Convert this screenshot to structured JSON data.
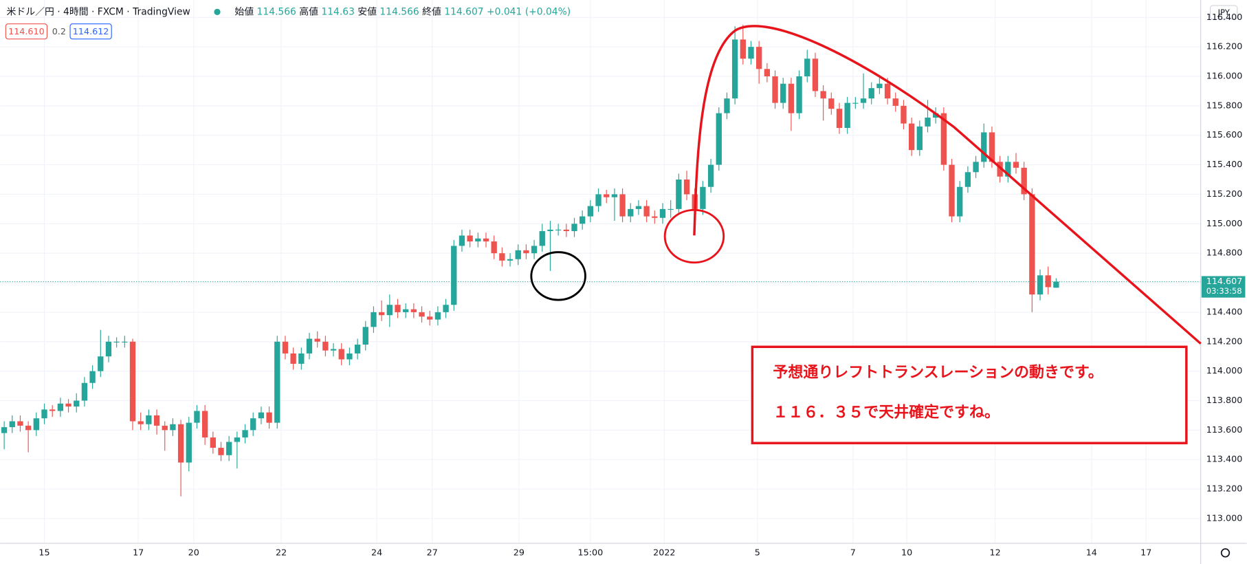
{
  "header": {
    "symbol": "米ドル／円 · 4時間 · FXCM · TradingView",
    "ohlc": [
      {
        "label": "始値",
        "value": 114.566
      },
      {
        "label": "高値",
        "value": 114.63
      },
      {
        "label": "安値",
        "value": 114.566
      },
      {
        "label": "終値",
        "value": 114.607
      }
    ],
    "change": "+0.041",
    "change_pct": "(+0.04%)",
    "sell": "114.610",
    "spread": "0.2",
    "buy": "114.612",
    "currency": "JPY"
  },
  "annotation": {
    "line1": "予想通りレフトトランスレーションの動きです。",
    "line2": "１１６．３５で天井確定ですね。"
  },
  "chart_data": {
    "type": "candlestick",
    "up_color": "#26a69a",
    "down_color": "#ef5350",
    "grid": true,
    "last_price": {
      "value": 114.607,
      "label": "114.607"
    },
    "countdown": "03:33:58",
    "xlim": [
      -0.5,
      149
    ],
    "ylim": [
      112.832,
      116.518
    ],
    "xticks": [
      {
        "value": 5,
        "label": "15"
      },
      {
        "value": 16.7,
        "label": "17"
      },
      {
        "value": 23.6,
        "label": "20"
      },
      {
        "value": 34.5,
        "label": "22"
      },
      {
        "value": 46.4,
        "label": "24"
      },
      {
        "value": 53.3,
        "label": "27"
      },
      {
        "value": 64.1,
        "label": "29"
      },
      {
        "value": 73,
        "label": "15:00"
      },
      {
        "value": 82.2,
        "label": "2022"
      },
      {
        "value": 93.8,
        "label": "5"
      },
      {
        "value": 105.7,
        "label": "7"
      },
      {
        "value": 112.4,
        "label": "10"
      },
      {
        "value": 123.4,
        "label": "12"
      },
      {
        "value": 135.4,
        "label": "14"
      },
      {
        "value": 142.2,
        "label": "17"
      }
    ],
    "yticks": [
      {
        "value": 113,
        "label": "113.000"
      },
      {
        "value": 113.2,
        "label": "113.200"
      },
      {
        "value": 113.4,
        "label": "113.400"
      },
      {
        "value": 113.6,
        "label": "113.600"
      },
      {
        "value": 113.8,
        "label": "113.800"
      },
      {
        "value": 114,
        "label": "114.000"
      },
      {
        "value": 114.2,
        "label": "114.200"
      },
      {
        "value": 114.4,
        "label": "114.400"
      },
      {
        "value": 114.6,
        "label": "114.600"
      },
      {
        "value": 114.8,
        "label": "114.800"
      },
      {
        "value": 115,
        "label": "115.000"
      },
      {
        "value": 115.2,
        "label": "115.200"
      },
      {
        "value": 115.4,
        "label": "115.400"
      },
      {
        "value": 115.6,
        "label": "115.600"
      },
      {
        "value": 115.8,
        "label": "115.800"
      },
      {
        "value": 116,
        "label": "116.000"
      },
      {
        "value": 116.2,
        "label": "116.200"
      },
      {
        "value": 116.4,
        "label": "116.400"
      }
    ],
    "open": [
      113.58,
      113.62,
      113.66,
      113.63,
      113.6,
      113.68,
      113.74,
      113.73,
      113.78,
      113.76,
      113.8,
      113.92,
      114.0,
      114.1,
      114.2,
      114.2,
      114.2,
      113.66,
      113.64,
      113.7,
      113.63,
      113.6,
      113.64,
      113.38,
      113.65,
      113.73,
      113.55,
      113.48,
      113.43,
      113.52,
      113.55,
      113.6,
      113.68,
      113.72,
      113.65,
      114.2,
      114.12,
      114.05,
      114.12,
      114.22,
      114.2,
      114.14,
      114.15,
      114.08,
      114.12,
      114.18,
      114.3,
      114.4,
      114.38,
      114.45,
      114.4,
      114.42,
      114.4,
      114.37,
      114.35,
      114.4,
      114.45,
      114.85,
      114.92,
      114.88,
      114.9,
      114.88,
      114.8,
      114.75,
      114.76,
      114.82,
      114.8,
      114.85,
      114.95,
      114.96,
      114.96,
      114.95,
      115.0,
      115.05,
      115.12,
      115.2,
      115.18,
      115.2,
      115.05,
      115.1,
      115.12,
      115.05,
      115.04,
      115.1,
      115.1,
      115.3,
      115.2,
      115.1,
      115.25,
      115.4,
      115.75,
      115.85,
      116.25,
      116.12,
      116.2,
      116.05,
      116.0,
      115.82,
      115.95,
      115.75,
      116.0,
      116.12,
      115.9,
      115.85,
      115.78,
      115.65,
      115.82,
      115.82,
      115.85,
      115.92,
      115.95,
      115.85,
      115.8,
      115.68,
      115.5,
      115.66,
      115.72,
      115.75,
      115.4,
      115.05,
      115.25,
      115.35,
      115.42,
      115.62,
      115.42,
      115.32,
      115.42,
      115.38,
      115.2,
      114.52,
      114.65,
      114.566
    ],
    "high": [
      113.66,
      113.7,
      113.7,
      113.66,
      113.72,
      113.78,
      113.77,
      113.82,
      113.81,
      113.85,
      113.96,
      114.04,
      114.28,
      114.24,
      114.23,
      114.24,
      114.22,
      113.72,
      113.74,
      113.74,
      113.66,
      113.68,
      113.67,
      113.69,
      113.77,
      113.77,
      113.59,
      113.52,
      113.56,
      113.59,
      113.64,
      113.72,
      113.76,
      113.76,
      114.24,
      114.24,
      114.16,
      114.16,
      114.26,
      114.27,
      114.24,
      114.19,
      114.19,
      114.16,
      114.22,
      114.34,
      114.44,
      114.48,
      114.52,
      114.49,
      114.46,
      114.46,
      114.44,
      114.41,
      114.44,
      114.49,
      114.89,
      114.96,
      114.96,
      114.94,
      114.94,
      114.92,
      114.84,
      114.8,
      114.86,
      114.86,
      114.89,
      115.0,
      115.02,
      115.0,
      115.0,
      115.04,
      115.09,
      115.16,
      115.24,
      115.23,
      115.24,
      115.24,
      115.14,
      115.16,
      115.16,
      115.09,
      115.14,
      115.16,
      115.34,
      115.36,
      115.24,
      115.29,
      115.44,
      115.79,
      115.89,
      116.34,
      116.35,
      116.24,
      116.24,
      116.09,
      116.04,
      115.99,
      115.99,
      116.04,
      116.18,
      116.16,
      115.94,
      115.89,
      115.82,
      115.86,
      115.86,
      116.02,
      115.96,
      115.99,
      115.99,
      115.89,
      115.84,
      115.72,
      115.7,
      115.84,
      115.79,
      115.79,
      115.44,
      115.29,
      115.39,
      115.46,
      115.68,
      115.66,
      115.46,
      115.46,
      115.48,
      115.42,
      115.24,
      114.69,
      114.71,
      114.63
    ],
    "low": [
      113.47,
      113.58,
      113.59,
      113.45,
      113.56,
      113.64,
      113.69,
      113.69,
      113.72,
      113.72,
      113.76,
      113.88,
      113.96,
      114.06,
      114.16,
      114.16,
      113.6,
      113.6,
      113.6,
      113.57,
      113.46,
      113.56,
      113.15,
      113.32,
      113.61,
      113.5,
      113.44,
      113.39,
      113.39,
      113.34,
      113.51,
      113.56,
      113.64,
      113.61,
      113.61,
      114.08,
      114.01,
      114.01,
      114.08,
      114.16,
      114.1,
      114.1,
      114.04,
      114.04,
      114.08,
      114.14,
      114.26,
      114.34,
      114.3,
      114.36,
      114.36,
      114.36,
      114.33,
      114.31,
      114.31,
      114.36,
      114.41,
      114.81,
      114.84,
      114.84,
      114.84,
      114.76,
      114.71,
      114.71,
      114.72,
      114.76,
      114.76,
      114.81,
      114.68,
      114.92,
      114.91,
      114.91,
      114.96,
      115.01,
      115.08,
      115.14,
      115.02,
      115.01,
      115.01,
      115.06,
      115.01,
      115.0,
      115.0,
      115.04,
      115.06,
      115.16,
      115.06,
      115.06,
      115.21,
      115.36,
      115.71,
      115.81,
      116.08,
      116.08,
      115.95,
      115.96,
      115.78,
      115.78,
      115.63,
      115.71,
      115.96,
      115.86,
      115.7,
      115.74,
      115.61,
      115.61,
      115.78,
      115.78,
      115.81,
      115.88,
      115.81,
      115.76,
      115.64,
      115.46,
      115.46,
      115.62,
      115.68,
      115.36,
      115.01,
      115.01,
      115.21,
      115.31,
      115.38,
      115.38,
      115.28,
      115.28,
      115.34,
      115.16,
      114.4,
      114.48,
      114.52,
      114.566
    ],
    "close": [
      113.62,
      113.66,
      113.63,
      113.6,
      113.68,
      113.74,
      113.73,
      113.78,
      113.76,
      113.8,
      113.92,
      114.0,
      114.1,
      114.2,
      114.2,
      114.2,
      113.66,
      113.64,
      113.7,
      113.63,
      113.6,
      113.64,
      113.38,
      113.65,
      113.73,
      113.55,
      113.48,
      113.43,
      113.52,
      113.55,
      113.6,
      113.68,
      113.72,
      113.65,
      114.2,
      114.12,
      114.05,
      114.12,
      114.22,
      114.2,
      114.14,
      114.15,
      114.08,
      114.12,
      114.18,
      114.3,
      114.4,
      114.38,
      114.45,
      114.4,
      114.42,
      114.4,
      114.37,
      114.35,
      114.4,
      114.45,
      114.85,
      114.92,
      114.88,
      114.9,
      114.88,
      114.8,
      114.75,
      114.76,
      114.82,
      114.8,
      114.85,
      114.95,
      114.96,
      114.96,
      114.95,
      115.0,
      115.05,
      115.12,
      115.2,
      115.18,
      115.2,
      115.05,
      115.1,
      115.12,
      115.05,
      115.04,
      115.1,
      115.1,
      115.3,
      115.2,
      115.1,
      115.25,
      115.4,
      115.75,
      115.85,
      116.25,
      116.12,
      116.2,
      116.05,
      116.0,
      115.82,
      115.95,
      115.75,
      116.0,
      116.12,
      115.9,
      115.85,
      115.78,
      115.65,
      115.82,
      115.82,
      115.85,
      115.92,
      115.95,
      115.85,
      115.8,
      115.68,
      115.5,
      115.66,
      115.72,
      115.75,
      115.4,
      115.05,
      115.25,
      115.35,
      115.42,
      115.62,
      115.42,
      115.32,
      115.42,
      115.38,
      115.2,
      114.52,
      114.65,
      114.57,
      114.607
    ]
  }
}
